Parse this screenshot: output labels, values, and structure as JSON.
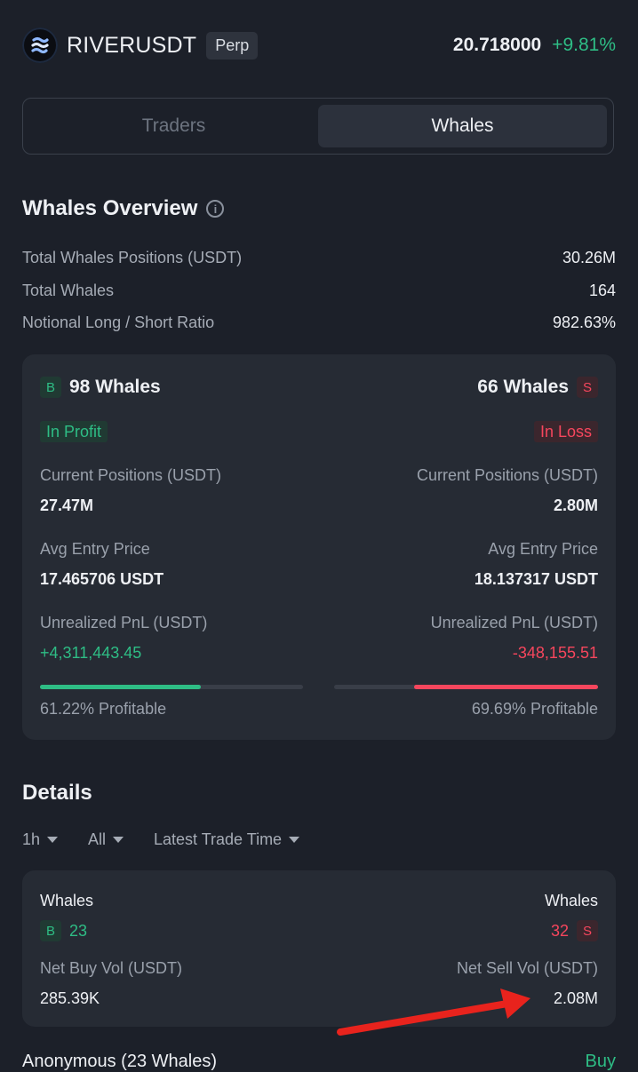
{
  "header": {
    "symbol": "RIVERUSDT",
    "badge": "Perp",
    "price": "20.718000",
    "change": "+9.81%"
  },
  "tabs": [
    {
      "label": "Traders",
      "active": false
    },
    {
      "label": "Whales",
      "active": true
    }
  ],
  "overview": {
    "title": "Whales Overview",
    "rows": [
      {
        "label": "Total Whales Positions (USDT)",
        "value": "30.26M"
      },
      {
        "label": "Total Whales",
        "value": "164"
      },
      {
        "label": "Notional Long / Short Ratio",
        "value": "982.63%"
      }
    ]
  },
  "long_card": {
    "side_letter": "B",
    "count": "98 Whales",
    "status": "In Profit",
    "positions_label": "Current Positions (USDT)",
    "positions_value": "27.47M",
    "entry_label": "Avg Entry Price",
    "entry_value": "17.465706 USDT",
    "pnl_label": "Unrealized PnL (USDT)",
    "pnl_value": "+4,311,443.45",
    "profitable_text": "61.22% Profitable",
    "profitable_fraction": 0.6122
  },
  "short_card": {
    "side_letter": "S",
    "count": "66 Whales",
    "status": "In Loss",
    "positions_label": "Current Positions (USDT)",
    "positions_value": "2.80M",
    "entry_label": "Avg Entry Price",
    "entry_value": "18.137317 USDT",
    "pnl_label": "Unrealized PnL (USDT)",
    "pnl_value": "-348,155.51",
    "profitable_text": "69.69% Profitable",
    "profitable_fraction": 0.6969
  },
  "details": {
    "title": "Details",
    "filters": [
      {
        "label": "1h"
      },
      {
        "label": "All"
      },
      {
        "label": "Latest Trade Time"
      }
    ],
    "card": {
      "buy_whales_label": "Whales",
      "buy_letter": "B",
      "buy_whales_count": "23",
      "sell_whales_label": "Whales",
      "sell_letter": "S",
      "sell_whales_count": "32",
      "net_buy_label": "Net Buy Vol (USDT)",
      "net_buy_value": "285.39K",
      "net_sell_label": "Net Sell Vol (USDT)",
      "net_sell_value": "2.08M"
    },
    "next_row_label": "Anonymous (23 Whales)",
    "next_row_side": "Buy"
  },
  "colors": {
    "background": "#1c2029",
    "card": "#262b34",
    "green": "#2ebd85",
    "red": "#f6465d",
    "annotation_arrow": "#e8231d"
  },
  "icons": [
    "river-logo-icon",
    "info-icon",
    "chevron-down-icon",
    "annotation-arrow"
  ]
}
